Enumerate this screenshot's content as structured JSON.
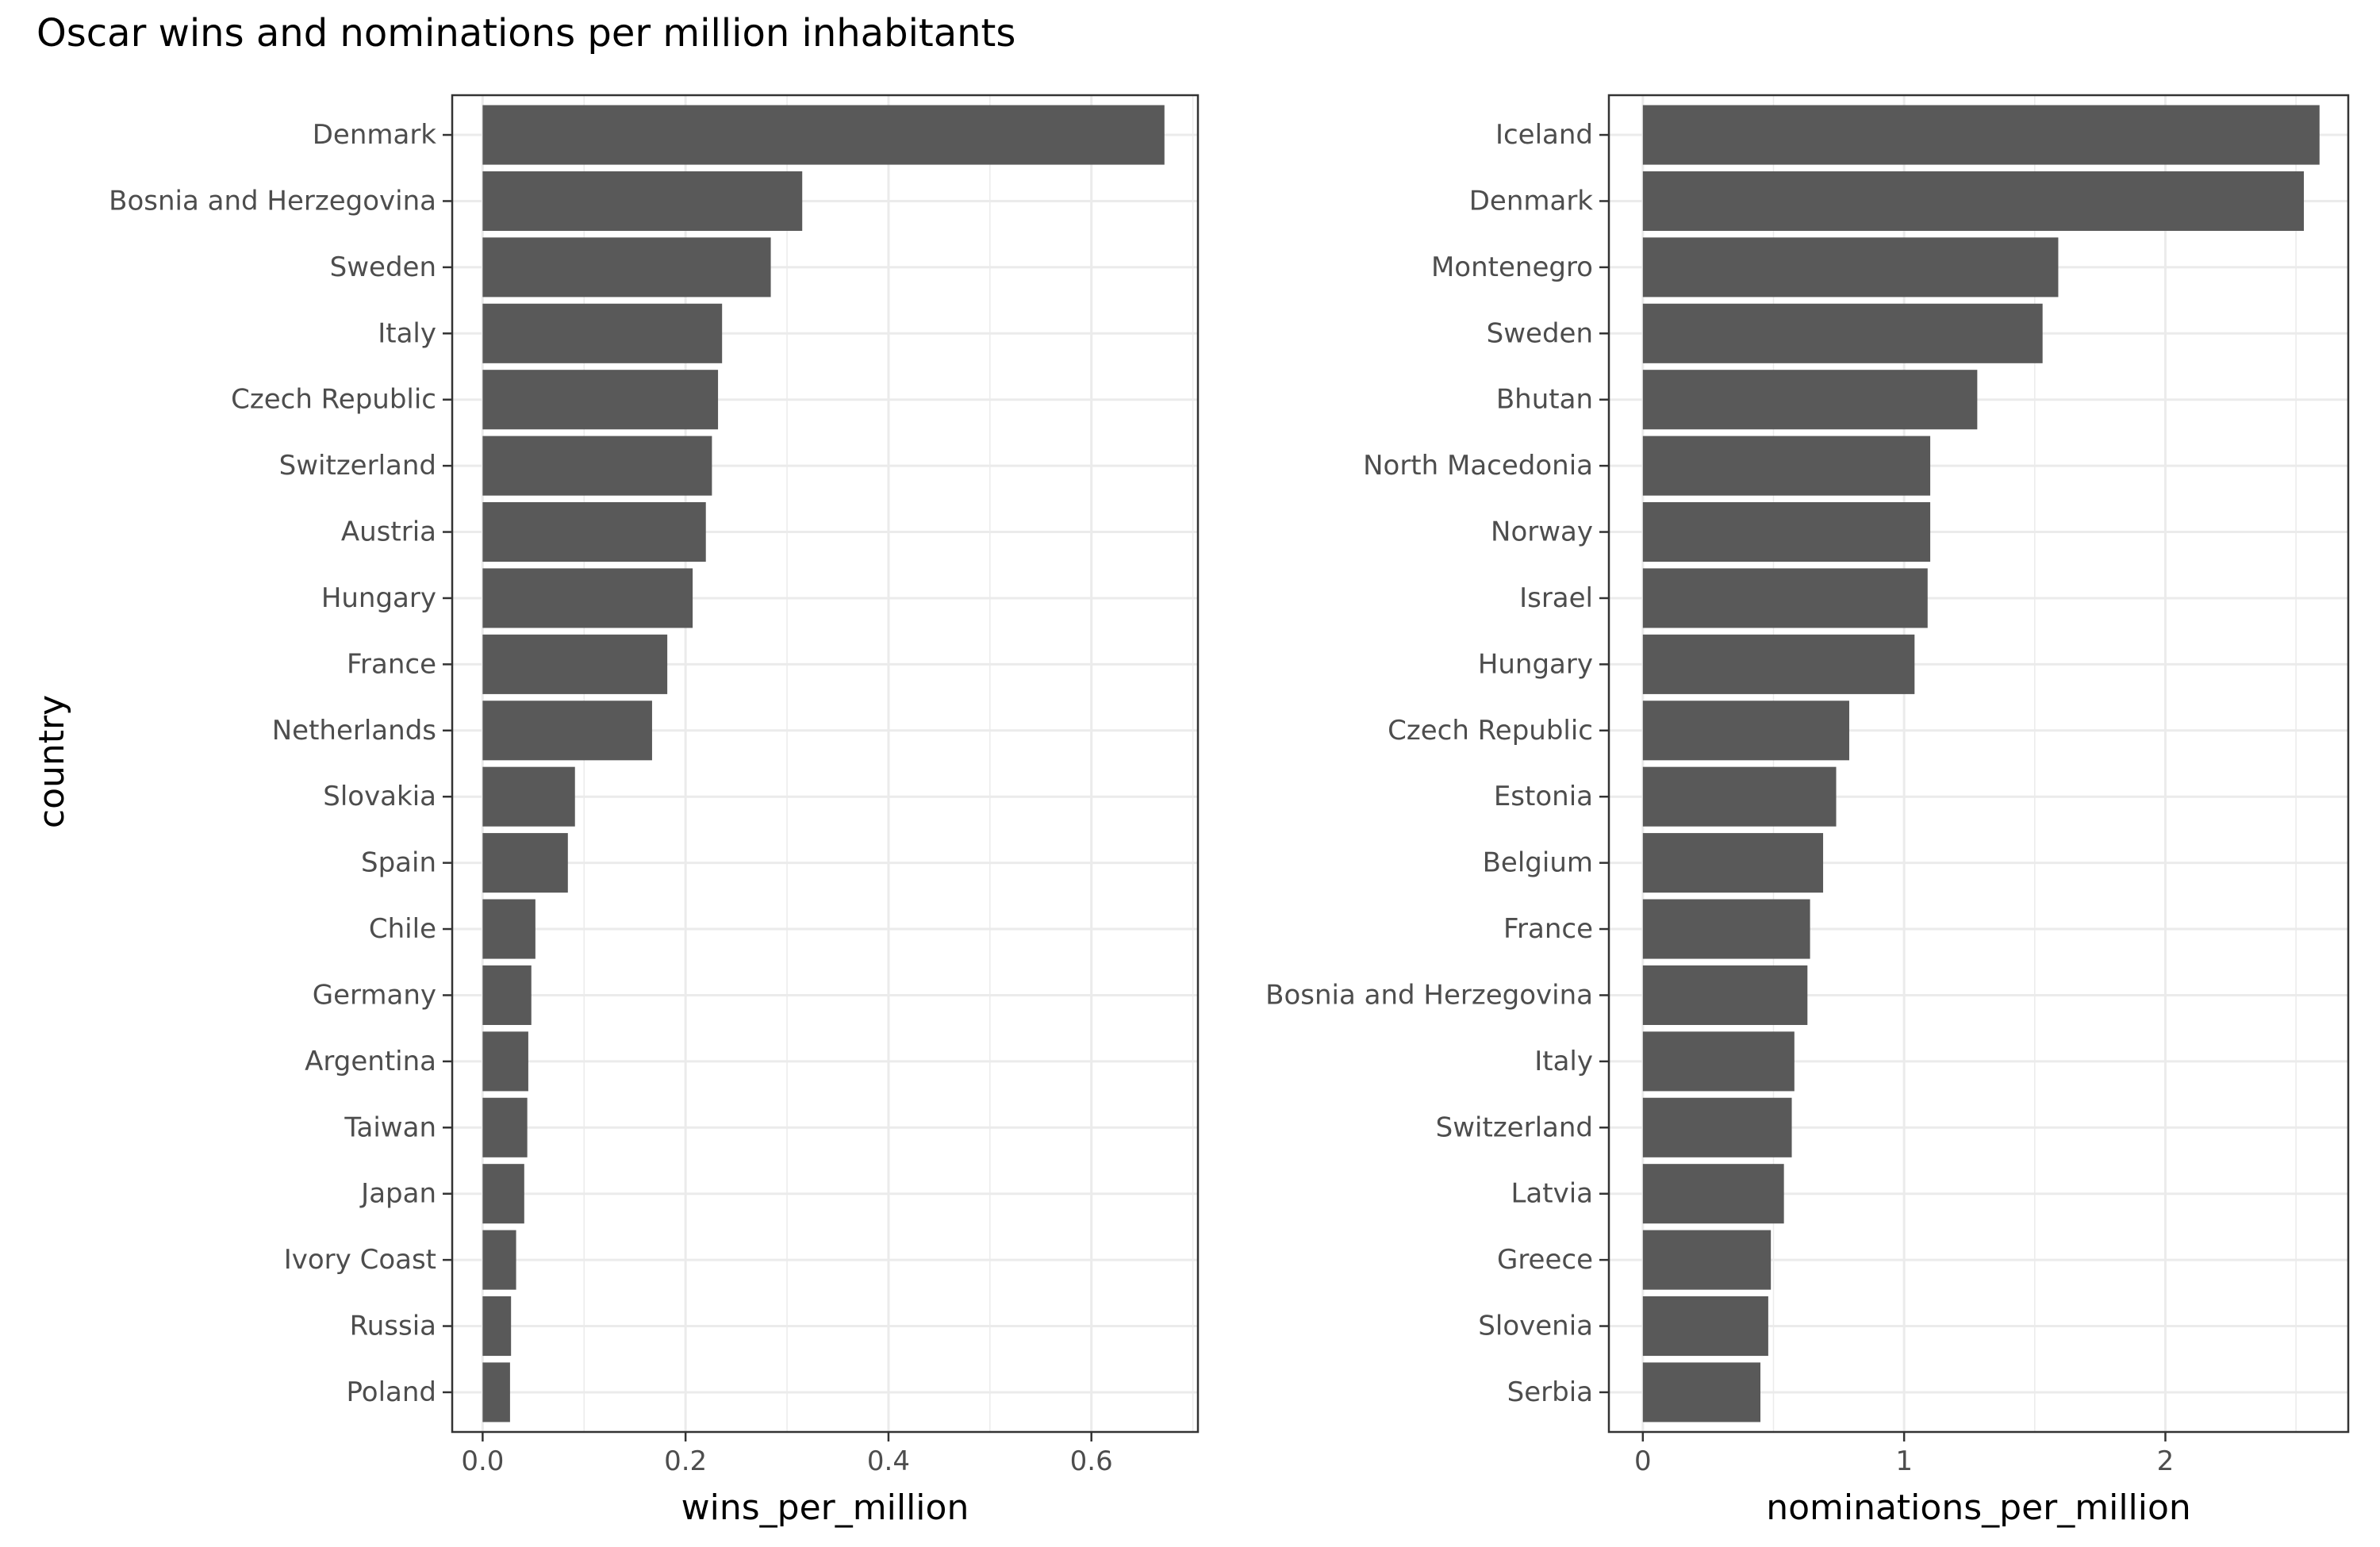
{
  "chart_data": {
    "type": "bar",
    "title": "Oscar wins and nominations per million inhabitants",
    "ylabel": "country",
    "bar_color": "#595959",
    "grid_color": "#ebebeb",
    "panel_border_color": "#333333",
    "panels": [
      {
        "orientation": "horizontal",
        "xlabel": "wins_per_million",
        "xlim": [
          -0.03,
          0.705
        ],
        "xticks": [
          0.0,
          0.2,
          0.4,
          0.6
        ],
        "xtick_labels": [
          "0.0",
          "0.2",
          "0.4",
          "0.6"
        ],
        "categories": [
          "Denmark",
          "Bosnia and Herzegovina",
          "Sweden",
          "Italy",
          "Czech Republic",
          "Switzerland",
          "Austria",
          "Hungary",
          "France",
          "Netherlands",
          "Slovakia",
          "Spain",
          "Chile",
          "Germany",
          "Argentina",
          "Taiwan",
          "Japan",
          "Ivory Coast",
          "Russia",
          "Poland"
        ],
        "values": [
          0.672,
          0.315,
          0.284,
          0.236,
          0.232,
          0.226,
          0.22,
          0.207,
          0.182,
          0.167,
          0.091,
          0.084,
          0.052,
          0.048,
          0.045,
          0.044,
          0.041,
          0.033,
          0.028,
          0.027
        ]
      },
      {
        "orientation": "horizontal",
        "xlabel": "nominations_per_million",
        "xlim": [
          -0.13,
          2.7
        ],
        "xticks": [
          0,
          1,
          2
        ],
        "xtick_labels": [
          "0",
          "1",
          "2"
        ],
        "categories": [
          "Iceland",
          "Denmark",
          "Montenegro",
          "Sweden",
          "Bhutan",
          "North Macedonia",
          "Norway",
          "Israel",
          "Hungary",
          "Czech Republic",
          "Estonia",
          "Belgium",
          "France",
          "Bosnia and Herzegovina",
          "Italy",
          "Switzerland",
          "Latvia",
          "Greece",
          "Slovenia",
          "Serbia"
        ],
        "values": [
          2.59,
          2.53,
          1.59,
          1.53,
          1.28,
          1.1,
          1.1,
          1.09,
          1.04,
          0.79,
          0.74,
          0.69,
          0.64,
          0.63,
          0.58,
          0.57,
          0.54,
          0.49,
          0.48,
          0.45
        ]
      }
    ]
  }
}
